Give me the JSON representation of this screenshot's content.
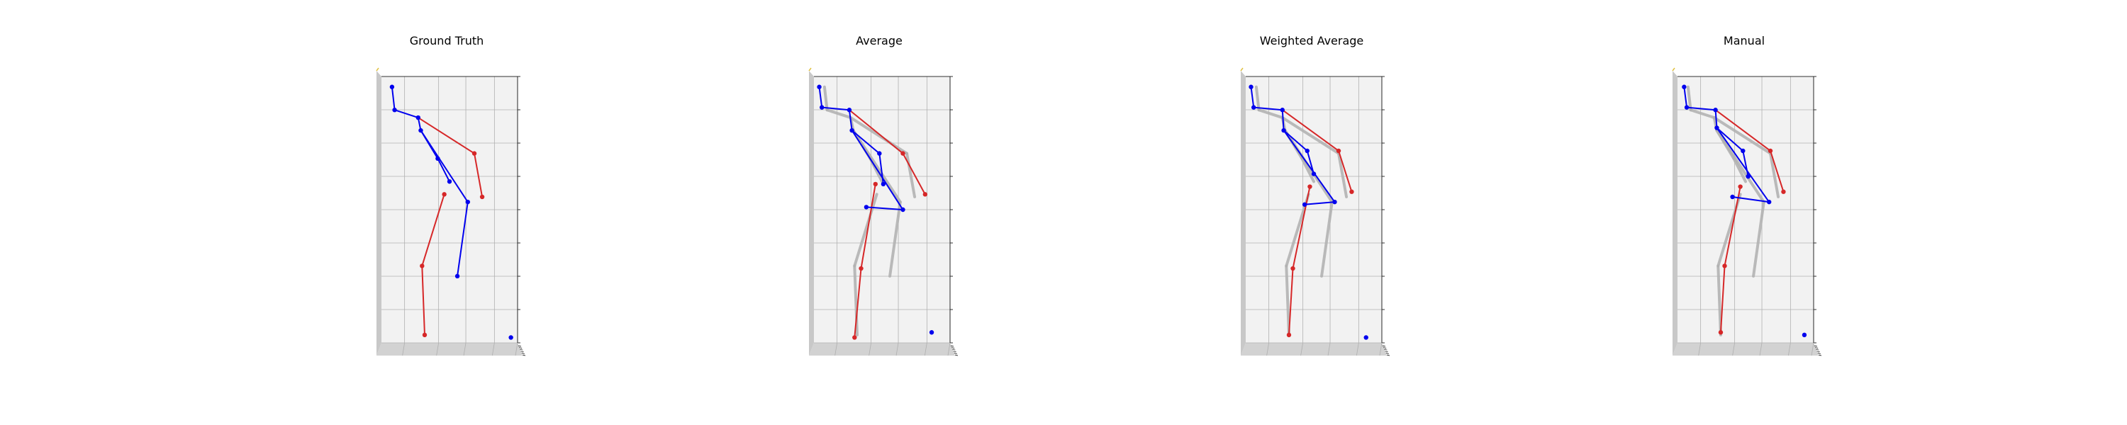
{
  "figure": {
    "panels": [
      {
        "title": "Ground Truth"
      },
      {
        "title": "Average"
      },
      {
        "title": "Weighted Average"
      },
      {
        "title": "Manual"
      }
    ]
  },
  "colors": {
    "left_limb": "#d62728",
    "right_limb": "#0000ee",
    "ground_truth_overlay": "#b0b0b0",
    "pane_back": "#f2f2f2",
    "pane_side": "#c8c8c8",
    "pane_floor": "#d2d2d2",
    "grid": "#b0b0b0",
    "axis_line": "#000000"
  },
  "chart_data": {
    "type": "skeleton-3d",
    "grid": true,
    "overlay_ground_truth_on_predictions": true,
    "bones_left": [
      [
        2,
        3
      ],
      [
        3,
        4
      ],
      [
        5,
        6
      ],
      [
        6,
        7
      ]
    ],
    "bones_right": [
      [
        0,
        1
      ],
      [
        1,
        2
      ],
      [
        2,
        8
      ],
      [
        8,
        9
      ],
      [
        9,
        10
      ],
      [
        8,
        11
      ],
      [
        11,
        12
      ]
    ],
    "poses": [
      {
        "name": "Ground Truth",
        "joints": [
          [
            0.06,
            0.02
          ],
          [
            0.08,
            0.11
          ],
          [
            0.26,
            0.14
          ],
          [
            0.69,
            0.28
          ],
          [
            0.75,
            0.45
          ],
          [
            0.46,
            0.44
          ],
          [
            0.29,
            0.72
          ],
          [
            0.31,
            0.99
          ],
          [
            0.28,
            0.19
          ],
          [
            0.41,
            0.3
          ],
          [
            0.5,
            0.39
          ],
          [
            0.64,
            0.47
          ],
          [
            0.56,
            0.76
          ],
          [
            0.97,
            1.0
          ]
        ]
      },
      {
        "name": "Average",
        "joints": [
          [
            0.02,
            0.02
          ],
          [
            0.04,
            0.1
          ],
          [
            0.25,
            0.11
          ],
          [
            0.66,
            0.28
          ],
          [
            0.83,
            0.44
          ],
          [
            0.45,
            0.4
          ],
          [
            0.34,
            0.73
          ],
          [
            0.29,
            1.0
          ],
          [
            0.27,
            0.19
          ],
          [
            0.48,
            0.28
          ],
          [
            0.51,
            0.4
          ],
          [
            0.66,
            0.5
          ],
          [
            0.38,
            0.49
          ],
          [
            0.88,
            0.98
          ]
        ]
      },
      {
        "name": "Weighted Average",
        "joints": [
          [
            0.02,
            0.02
          ],
          [
            0.04,
            0.1
          ],
          [
            0.26,
            0.11
          ],
          [
            0.69,
            0.27
          ],
          [
            0.79,
            0.43
          ],
          [
            0.47,
            0.41
          ],
          [
            0.34,
            0.73
          ],
          [
            0.31,
            0.99
          ],
          [
            0.27,
            0.19
          ],
          [
            0.45,
            0.27
          ],
          [
            0.5,
            0.36
          ],
          [
            0.66,
            0.47
          ],
          [
            0.43,
            0.48
          ],
          [
            0.9,
            1.0
          ]
        ]
      },
      {
        "name": "Manual",
        "joints": [
          [
            0.03,
            0.02
          ],
          [
            0.05,
            0.1
          ],
          [
            0.27,
            0.11
          ],
          [
            0.69,
            0.27
          ],
          [
            0.79,
            0.43
          ],
          [
            0.46,
            0.41
          ],
          [
            0.34,
            0.72
          ],
          [
            0.31,
            0.98
          ],
          [
            0.28,
            0.18
          ],
          [
            0.48,
            0.27
          ],
          [
            0.52,
            0.37
          ],
          [
            0.68,
            0.47
          ],
          [
            0.4,
            0.45
          ],
          [
            0.95,
            0.99
          ]
        ]
      }
    ]
  }
}
